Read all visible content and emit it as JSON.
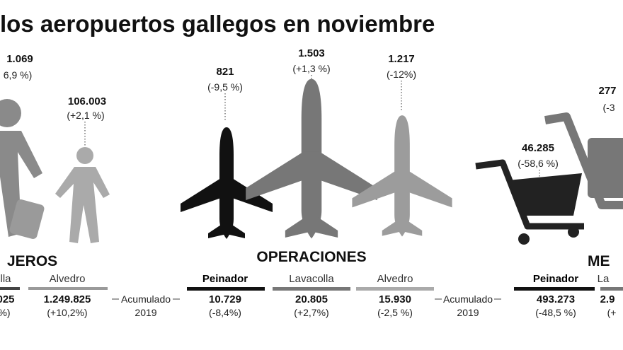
{
  "title": "los aeropuertos gallegos en noviembre",
  "pasajeros": {
    "heading": "JEROS",
    "monthly": [
      {
        "value": "1.069",
        "change": "6,9 %)"
      },
      {
        "value": "106.003",
        "change": "(+2,1 %)"
      }
    ],
    "airports": [
      {
        "name": "lla",
        "total": "025",
        "change": "%)"
      },
      {
        "name": "Alvedro",
        "total": "1.249.825",
        "change": "(+10,2%)"
      }
    ],
    "cumulative": [
      "Acumulado",
      "2019"
    ]
  },
  "operaciones": {
    "heading": "OPERACIONES",
    "monthly": [
      {
        "value": "821",
        "change": "(-9,5 %)"
      },
      {
        "value": "1.503",
        "change": "(+1,3 %)"
      },
      {
        "value": "1.217",
        "change": "(-12%)"
      }
    ],
    "airports": [
      {
        "name": "Peinador",
        "total": "10.729",
        "change": "(-8,4%)"
      },
      {
        "name": "Lavacolla",
        "total": "20.805",
        "change": "(+2,7%)"
      },
      {
        "name": "Alvedro",
        "total": "15.930",
        "change": "(-2,5 %)"
      }
    ],
    "cumulative": [
      "Acumulado",
      "2019"
    ]
  },
  "mercancias": {
    "heading": "ME",
    "monthly": [
      {
        "value": "46.285",
        "change": "(-58,6 %)"
      },
      {
        "value": "277",
        "change": "(-3"
      }
    ],
    "airports": [
      {
        "name": "Peinador",
        "total": "493.273",
        "change": "(-48,5 %)"
      },
      {
        "name": "La",
        "total": "2.9",
        "change": "(+"
      }
    ]
  }
}
